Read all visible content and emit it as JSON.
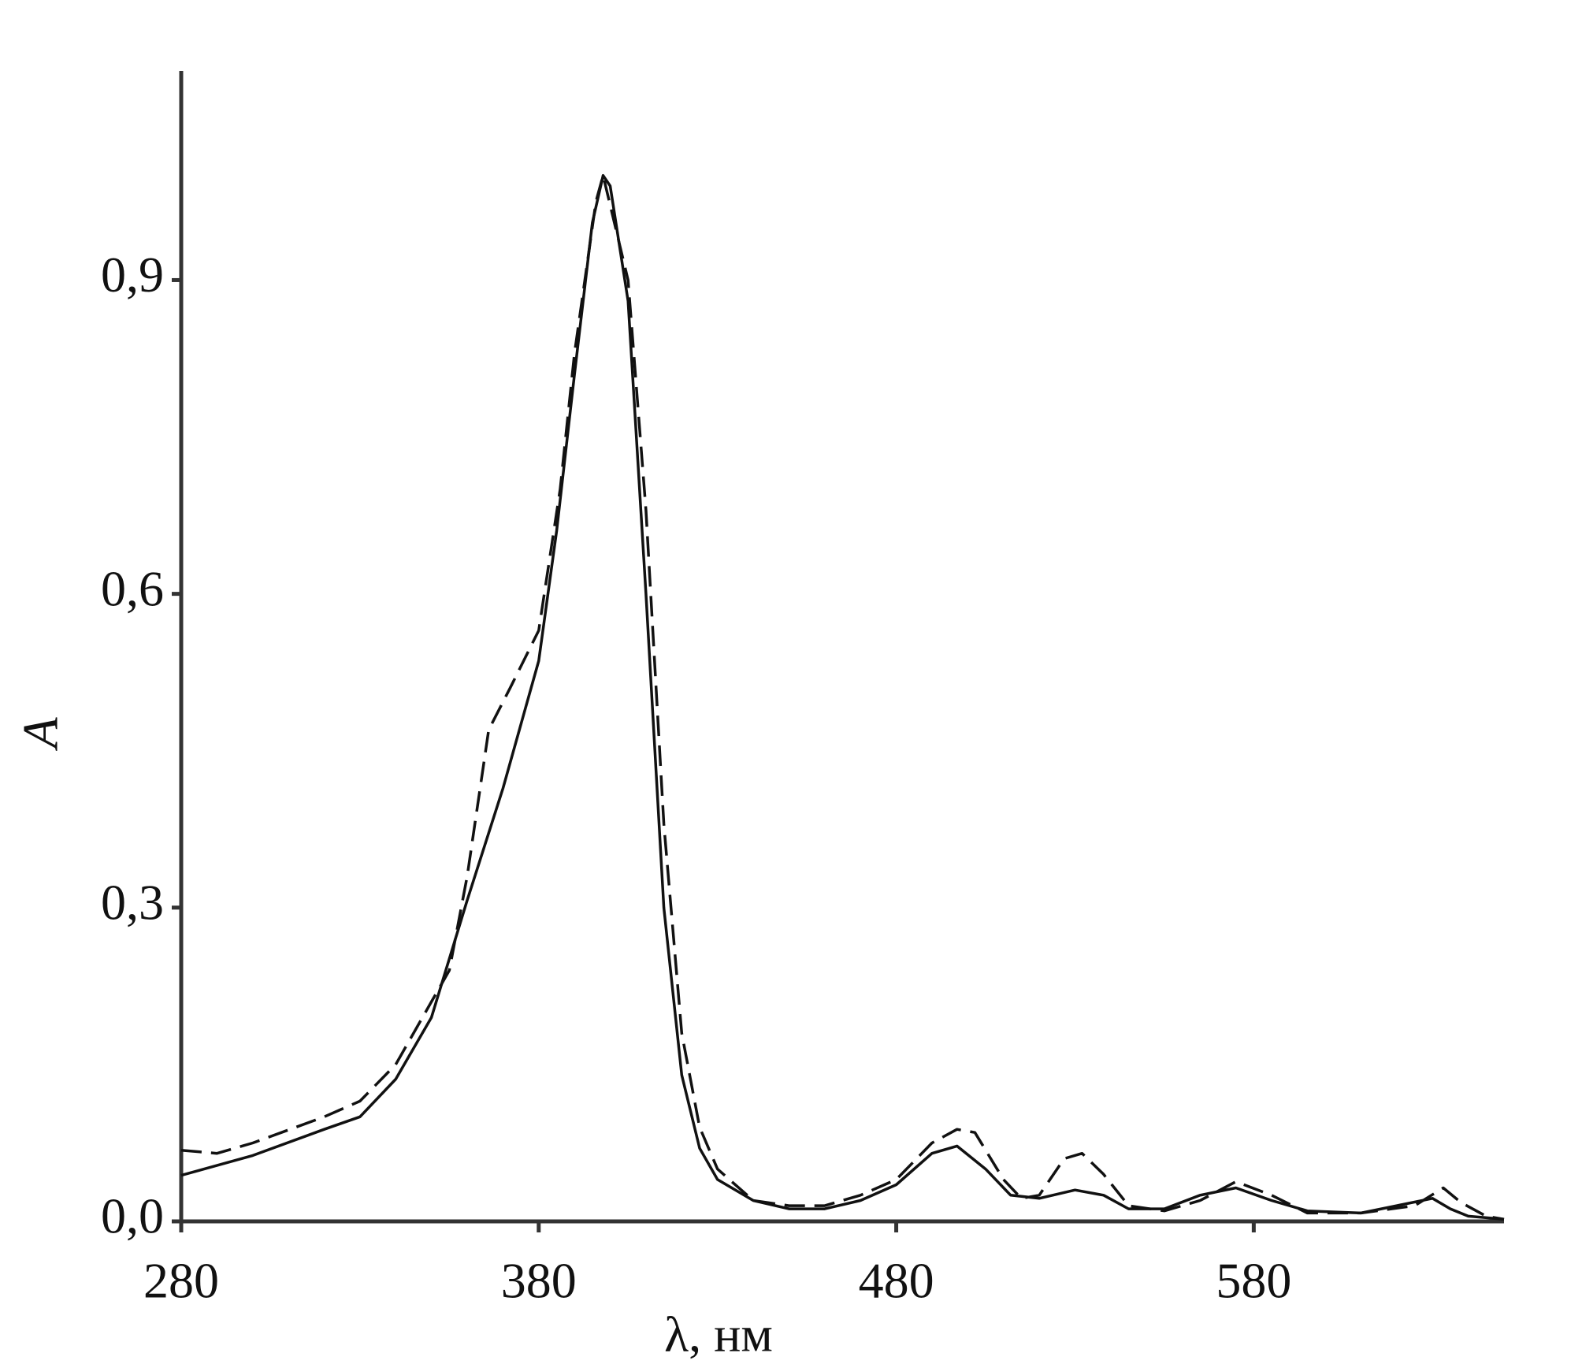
{
  "chart_data": {
    "type": "line",
    "x_label": "λ, нм",
    "y_label": "A",
    "xlim": [
      280,
      650
    ],
    "ylim": [
      0,
      1.1
    ],
    "xticks": [
      280,
      380,
      480,
      580
    ],
    "yticks": [
      {
        "value": 0,
        "label": "0,0"
      },
      {
        "value": 0.3,
        "label": "0,3"
      },
      {
        "value": 0.6,
        "label": "0,6"
      },
      {
        "value": 0.9,
        "label": "0,9"
      }
    ],
    "grid": false,
    "series": [
      {
        "color": "#111111",
        "line_style": "solid",
        "x": [
          280,
          300,
          320,
          330,
          340,
          350,
          360,
          370,
          380,
          385,
          390,
          395,
          398,
          400,
          405,
          410,
          415,
          420,
          425,
          430,
          440,
          450,
          460,
          470,
          480,
          490,
          497,
          505,
          512,
          520,
          530,
          538,
          545,
          555,
          565,
          575,
          585,
          595,
          610,
          620,
          630,
          635,
          640,
          650
        ],
        "values": [
          0.044,
          0.063,
          0.088,
          0.1,
          0.136,
          0.195,
          0.307,
          0.414,
          0.536,
          0.66,
          0.81,
          0.955,
          1.0,
          0.99,
          0.88,
          0.6,
          0.3,
          0.14,
          0.07,
          0.04,
          0.02,
          0.012,
          0.012,
          0.02,
          0.035,
          0.065,
          0.072,
          0.05,
          0.025,
          0.022,
          0.03,
          0.025,
          0.012,
          0.012,
          0.025,
          0.032,
          0.02,
          0.01,
          0.008,
          0.015,
          0.022,
          0.012,
          0.005,
          0.002
        ]
      },
      {
        "color": "#111111",
        "line_style": "dashed",
        "x": [
          280,
          290,
          300,
          320,
          330,
          340,
          350,
          355,
          360,
          366,
          372,
          380,
          386,
          390,
          396,
          398,
          405,
          410,
          415,
          420,
          425,
          430,
          440,
          450,
          460,
          470,
          480,
          490,
          497,
          502,
          510,
          515,
          520,
          527,
          532,
          538,
          545,
          555,
          565,
          575,
          585,
          595,
          610,
          625,
          633,
          638,
          645,
          650
        ],
        "values": [
          0.068,
          0.065,
          0.075,
          0.1,
          0.115,
          0.15,
          0.21,
          0.24,
          0.33,
          0.47,
          0.51,
          0.565,
          0.7,
          0.83,
          0.975,
          1.0,
          0.9,
          0.68,
          0.38,
          0.18,
          0.09,
          0.05,
          0.02,
          0.015,
          0.015,
          0.025,
          0.04,
          0.075,
          0.088,
          0.085,
          0.04,
          0.022,
          0.025,
          0.06,
          0.065,
          0.045,
          0.015,
          0.01,
          0.02,
          0.038,
          0.025,
          0.008,
          0.008,
          0.015,
          0.032,
          0.018,
          0.005,
          0.002
        ]
      }
    ]
  }
}
